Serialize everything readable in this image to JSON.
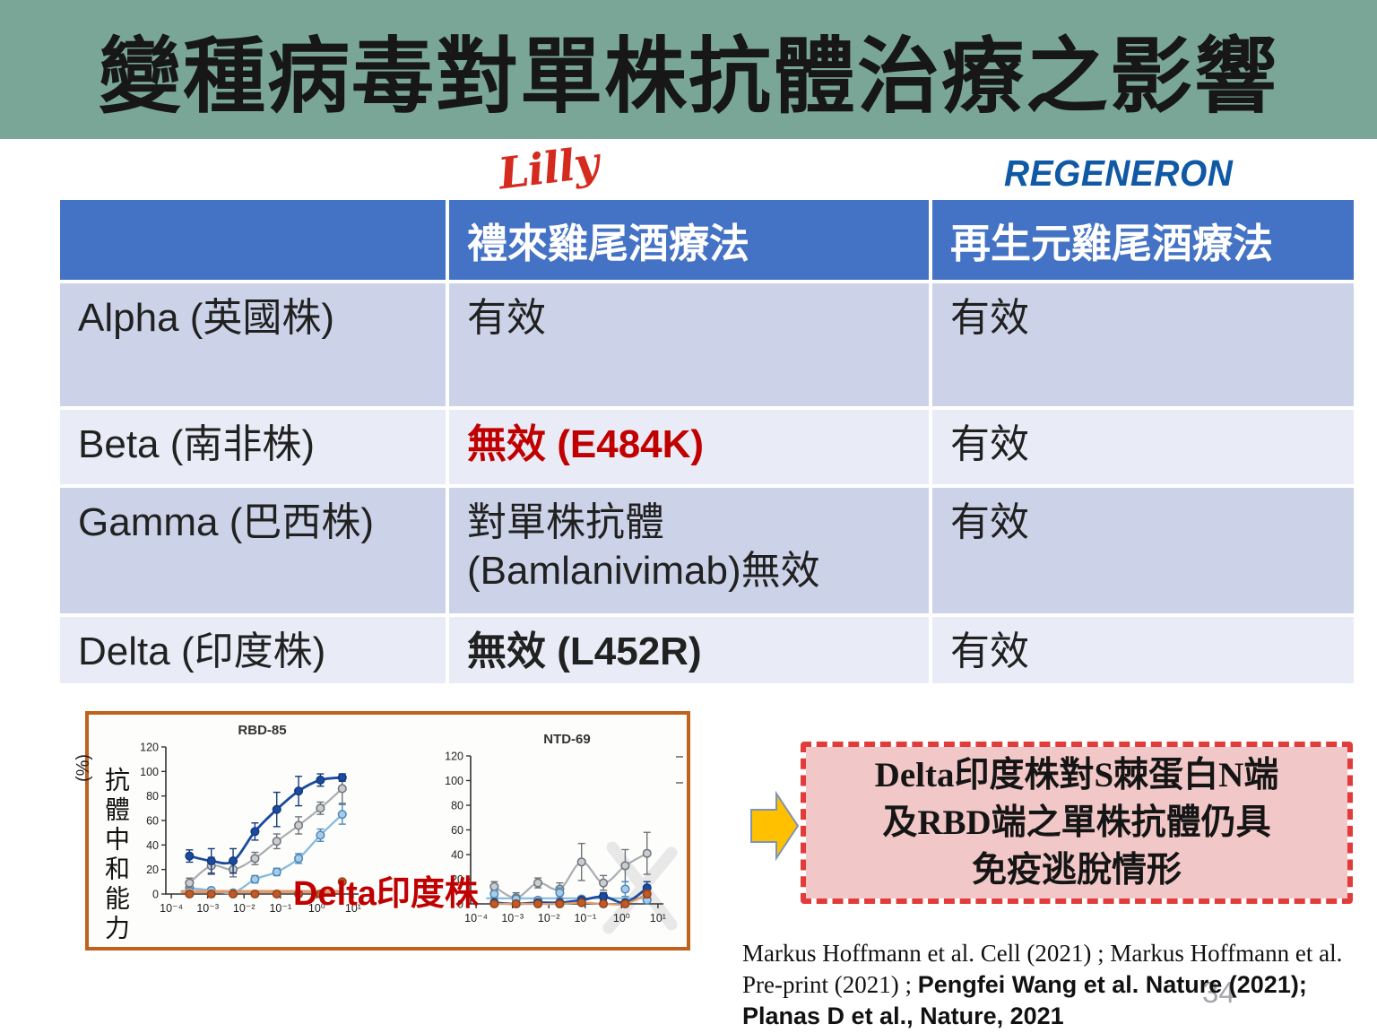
{
  "slide": {
    "title": "變種病毒對單株抗體治療之影響"
  },
  "logos": {
    "lilly": "Lilly",
    "regeneron": "REGENERON"
  },
  "table": {
    "headers": {
      "variant": "",
      "lilly": "禮來雞尾酒療法",
      "regeneron": "再生元雞尾酒療法"
    },
    "rows": [
      {
        "variant": "Alpha (英國株)",
        "lilly": "有效",
        "regeneron": "有效"
      },
      {
        "variant": "Beta (南非株)",
        "lilly": "無效 (E484K)",
        "regeneron": "有效"
      },
      {
        "variant": "Gamma (巴西株)",
        "lilly_line1": "對單株抗體",
        "lilly_line2": "(Bamlanivimab)無效",
        "regeneron": "有效"
      },
      {
        "variant": "Delta (印度株)",
        "lilly": "無效 (L452R)",
        "regeneron": "有效"
      }
    ]
  },
  "figure": {
    "y_axis_unit": "(%)",
    "y_axis_label": "抗體中和能力",
    "delta_label": "Delta印度株"
  },
  "chart_data": [
    {
      "type": "line",
      "title": "RBD-85",
      "xlabel": "",
      "ylabel": "抗體中和能力 (%)",
      "xscale": "log",
      "xlim_log10": [
        -4,
        1
      ],
      "ylim": [
        0,
        120
      ],
      "yticks": [
        0,
        20,
        40,
        60,
        80,
        100,
        120
      ],
      "xticks": [
        "10⁻⁴",
        "10⁻³",
        "10⁻²",
        "10⁻¹",
        "10⁰",
        "10¹"
      ],
      "xtick_log10": [
        -4,
        -3,
        -2,
        -1,
        0,
        1
      ],
      "x_log10": [
        -3.5,
        -2.9,
        -2.3,
        -1.7,
        -1.1,
        -0.5,
        0.1,
        0.7
      ],
      "series": [
        {
          "name": "light-blue-antibody",
          "values": [
            5,
            3,
            1,
            12,
            18,
            29,
            48,
            65
          ],
          "errors": [
            2,
            2,
            1,
            3,
            3,
            4,
            5,
            8
          ],
          "line_color": "#85b9de",
          "marker_fill": "#a8cbe8",
          "marker_stroke": "#4d88b8"
        },
        {
          "name": "gray-antibody",
          "values": [
            9,
            23,
            20,
            29,
            43,
            56,
            70,
            86
          ],
          "errors": [
            4,
            7,
            6,
            5,
            6,
            7,
            5,
            12
          ],
          "line_color": "#a9adb2",
          "marker_fill": "#c9cdd1",
          "marker_stroke": "#6f7479"
        },
        {
          "name": "dark-blue-antibody",
          "values": [
            31,
            27,
            27,
            51,
            69,
            84,
            93,
            95
          ],
          "errors": [
            5,
            10,
            10,
            7,
            14,
            12,
            5,
            3
          ],
          "line_color": "#1b4a9e",
          "marker_fill": "#1b4a9e",
          "marker_stroke": "#133a7e",
          "line_width": 2.8
        },
        {
          "name": "Delta印度株 (orange)",
          "values": [
            0,
            0,
            0,
            0,
            0,
            0,
            0,
            10
          ],
          "errors": [
            0,
            0,
            0,
            0,
            0,
            0,
            0,
            0
          ],
          "trend": {
            "type": "flat",
            "y": 2,
            "x_from": -3.7,
            "x_to": 0.6
          },
          "line_color": "#e09a6d",
          "marker_fill": "#bf5b28",
          "marker_stroke": "#96431c",
          "line_width": 3.5
        }
      ]
    },
    {
      "type": "line",
      "title": "NTD-69",
      "xlabel": "",
      "ylabel": "抗體中和能力 (%)",
      "xscale": "log",
      "xlim_log10": [
        -4,
        1
      ],
      "ylim": [
        0,
        120
      ],
      "yticks": [
        0,
        20,
        40,
        60,
        80,
        100,
        120
      ],
      "xticks": [
        "10⁻⁴",
        "10⁻³",
        "10⁻²",
        "10⁻¹",
        "10⁰",
        "10¹"
      ],
      "xtick_log10": [
        -4,
        -3,
        -2,
        -1,
        0,
        1
      ],
      "x_log10": [
        -3.5,
        -2.9,
        -2.3,
        -1.7,
        -1.1,
        -0.5,
        0.1,
        0.7
      ],
      "series": [
        {
          "name": "gray-antibody",
          "values": [
            14,
            5,
            17,
            12,
            34,
            17,
            31,
            41
          ],
          "errors": [
            4,
            4,
            4,
            5,
            15,
            6,
            13,
            17
          ],
          "line_color": "#a9adb2",
          "marker_fill": "#c9cdd1",
          "marker_stroke": "#6f7479"
        },
        {
          "name": "light-blue-antibody",
          "values": [
            8,
            4,
            3,
            9,
            4,
            6,
            12,
            3
          ],
          "errors": [
            3,
            2,
            2,
            4,
            2,
            3,
            6,
            2
          ],
          "trend": {
            "type": "flat",
            "y": 4.5,
            "x_from": -3.7,
            "x_to": 0.8
          },
          "line_color": "#85b9de",
          "marker_fill": "#a8cbe8",
          "marker_stroke": "#4d88b8"
        },
        {
          "name": "dark-blue-antibody",
          "values": [
            1,
            0,
            1,
            1,
            3,
            6,
            1,
            13
          ],
          "errors": [
            1,
            1,
            1,
            1,
            2,
            3,
            1,
            5
          ],
          "line_color": "#1b4a9e",
          "marker_fill": "#1b4a9e",
          "marker_stroke": "#133a7e",
          "line_width": 2.8
        },
        {
          "name": "Delta印度株 (orange)",
          "values": [
            0,
            0,
            0,
            0,
            1,
            0,
            0,
            8
          ],
          "errors": [
            0,
            0,
            0,
            0,
            0,
            0,
            0,
            3
          ],
          "line_color": "#e09a6d",
          "marker_fill": "#bf5b28",
          "marker_stroke": "#96431c"
        }
      ]
    }
  ],
  "callout": {
    "lines": [
      "Delta印度株對S棘蛋白N端",
      "及RBD端之單株抗體仍具",
      "免疫逃脫情形"
    ]
  },
  "citation": {
    "part1": "Markus Hoffmann et al. Cell (2021) ; Markus Hoffmann et al. Pre-print (2021) ; ",
    "part2": "Pengfei Wang et al. Nature (2021); Planas D et al., Nature, 2021",
    "page_number": "34"
  },
  "colors": {
    "banner": "#7aa698",
    "header": "#4472c4",
    "rowdark": "#ccd3e8",
    "rowlight": "#e9ecf6",
    "alert": "#c00000",
    "panel": "#c0611c",
    "callout-border": "#e23b3b",
    "callout-fill": "#f2c7c7",
    "arrow": "#ffc000",
    "lilly": "#d52b1e",
    "regeneron": "#1059a5"
  }
}
